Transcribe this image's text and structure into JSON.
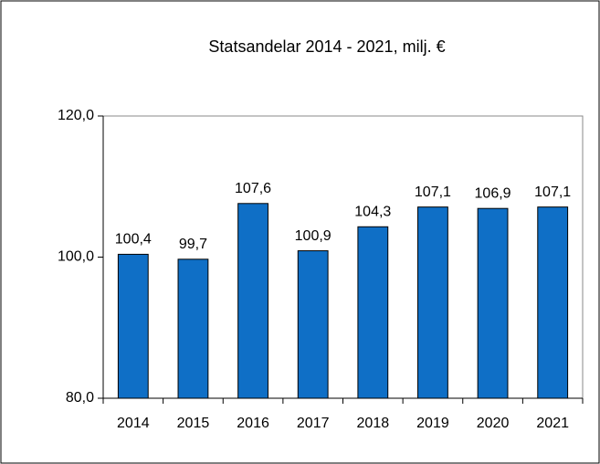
{
  "chart_data": {
    "type": "bar",
    "title": "Statsandelar 2014 - 2021, milj. €",
    "categories": [
      "2014",
      "2015",
      "2016",
      "2017",
      "2018",
      "2019",
      "2020",
      "2021"
    ],
    "values": [
      100.4,
      99.7,
      107.6,
      100.9,
      104.3,
      107.1,
      106.9,
      107.1
    ],
    "value_labels": [
      "100,4",
      "99,7",
      "107,6",
      "100,9",
      "104,3",
      "107,1",
      "106,9",
      "107,1"
    ],
    "color": "#0f6fc6",
    "ylim": [
      80,
      120
    ],
    "yticks": [
      {
        "value": 80,
        "label": "80,0"
      },
      {
        "value": 100,
        "label": "100,0"
      },
      {
        "value": 120,
        "label": "120,0"
      }
    ],
    "grid": false
  }
}
